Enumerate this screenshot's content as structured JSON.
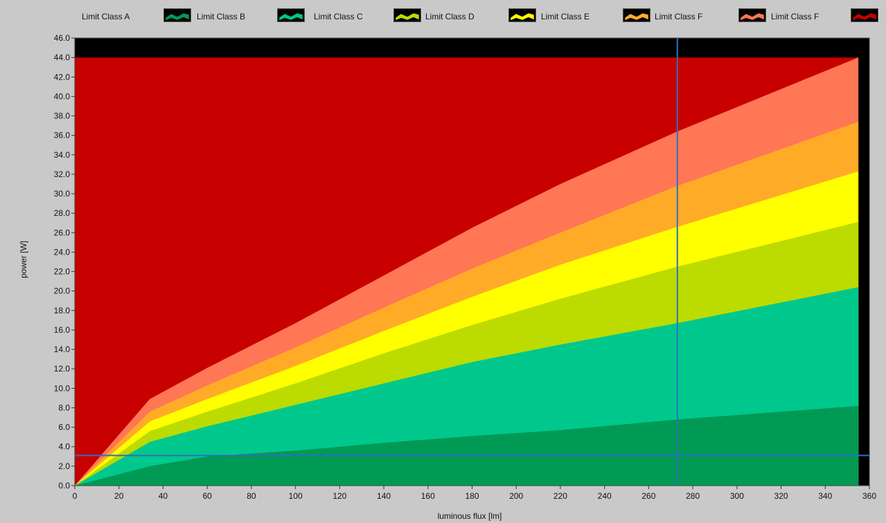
{
  "legend": [
    {
      "label": "Limit Class A",
      "color": "#009a55"
    },
    {
      "label": "Limit Class B",
      "color": "#00c88c"
    },
    {
      "label": "Limit Class C",
      "color": "#bcdb00"
    },
    {
      "label": "Limit Class D",
      "color": "#ffff00"
    },
    {
      "label": "Limit Class E",
      "color": "#ffab28"
    },
    {
      "label": "Limit Class F",
      "color": "#ff7755"
    },
    {
      "label": "Limit Class F",
      "color": "#c80000"
    }
  ],
  "chart_data": {
    "type": "area",
    "xlabel": "luminous flux [lm]",
    "ylabel": "power [W]",
    "xlim": [
      0,
      360
    ],
    "ylim": [
      0,
      46
    ],
    "x_ticks": [
      0,
      20,
      40,
      60,
      80,
      100,
      120,
      140,
      160,
      180,
      200,
      220,
      240,
      260,
      280,
      300,
      320,
      340,
      360
    ],
    "y_ticks": [
      0,
      2,
      4,
      6,
      8,
      10,
      12,
      14,
      16,
      18,
      20,
      22,
      24,
      26,
      28,
      30,
      32,
      34,
      36,
      38,
      40,
      42,
      44,
      46
    ],
    "x_tick_labels": [
      "0",
      "20",
      "40",
      "60",
      "80",
      "100",
      "120",
      "140",
      "160",
      "180",
      "200",
      "220",
      "240",
      "260",
      "280",
      "300",
      "320",
      "340",
      "360"
    ],
    "y_tick_labels": [
      "0.0",
      "2.0",
      "4.0",
      "6.0",
      "8.0",
      "10.0",
      "12.0",
      "14.0",
      "16.0",
      "18.0",
      "20.0",
      "22.0",
      "24.0",
      "26.0",
      "28.0",
      "30.0",
      "32.0",
      "34.0",
      "36.0",
      "38.0",
      "40.0",
      "42.0",
      "44.0",
      "46.0"
    ],
    "x": [
      0,
      34,
      60,
      100,
      140,
      180,
      220,
      273,
      355
    ],
    "series": [
      {
        "name": "Limit Class A",
        "color": "#009a55",
        "values": [
          0,
          2.0,
          3.0,
          3.6,
          4.4,
          5.1,
          5.7,
          6.8,
          8.2
        ]
      },
      {
        "name": "Limit Class B",
        "color": "#00c88c",
        "values": [
          0,
          4.5,
          6.1,
          8.3,
          10.5,
          12.7,
          14.5,
          16.7,
          20.4
        ]
      },
      {
        "name": "Limit Class C",
        "color": "#bcdb00",
        "values": [
          0,
          5.6,
          7.6,
          10.5,
          13.6,
          16.5,
          19.2,
          22.5,
          27.1
        ]
      },
      {
        "name": "Limit Class D",
        "color": "#ffff00",
        "values": [
          0,
          6.6,
          8.9,
          12.3,
          15.9,
          19.4,
          22.7,
          26.6,
          32.3
        ]
      },
      {
        "name": "Limit Class E",
        "color": "#ffab28",
        "values": [
          0,
          7.6,
          10.3,
          14.2,
          18.3,
          22.3,
          26.0,
          30.8,
          37.4
        ]
      },
      {
        "name": "Limit Class F",
        "color": "#ff7755",
        "values": [
          0,
          8.9,
          12.1,
          16.7,
          21.6,
          26.5,
          31.0,
          36.4,
          44.0
        ]
      },
      {
        "name": "Limit Class F",
        "color": "#c80000",
        "values": [
          44,
          44,
          44,
          44,
          44,
          44,
          44,
          44,
          44
        ]
      }
    ],
    "cursor": {
      "x": 273,
      "y": 3.1,
      "color": "#2f6fbf"
    },
    "plot_background": "#000000",
    "grid": false
  }
}
